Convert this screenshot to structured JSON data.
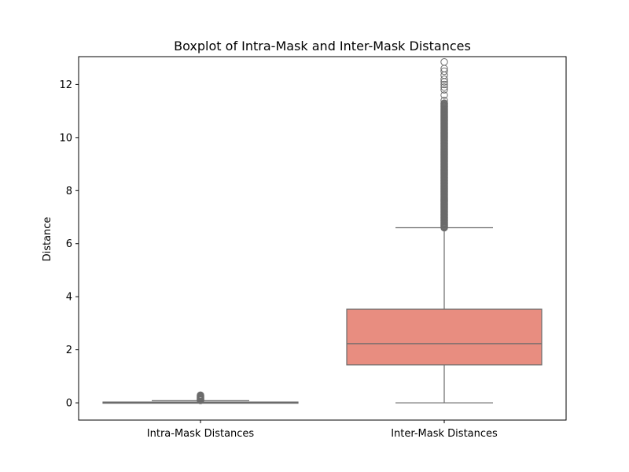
{
  "chart_data": {
    "type": "boxplot",
    "title": "Boxplot of Intra-Mask and Inter-Mask Distances",
    "xlabel": "",
    "ylabel": "Distance",
    "ylim": [
      -0.65,
      13.05
    ],
    "yticks": [
      0,
      2,
      4,
      6,
      8,
      10,
      12
    ],
    "grid": false,
    "categories": [
      "Intra-Mask Distances",
      "Inter-Mask Distances"
    ],
    "boxes": [
      {
        "category": "Intra-Mask Distances",
        "min": 0.0,
        "q1": 0.0,
        "median": 0.01,
        "q3": 0.03,
        "max": 0.08,
        "outliers": [
          0.09,
          0.11,
          0.13,
          0.15,
          0.17,
          0.19,
          0.21,
          0.23,
          0.25,
          0.27,
          0.29
        ],
        "color": "#9aa9d1"
      },
      {
        "category": "Inter-Mask Distances",
        "min": 0.0,
        "q1": 1.43,
        "median": 2.23,
        "q3": 3.53,
        "max": 6.6,
        "outliers_range": [
          6.6,
          11.3
        ],
        "outliers": [
          11.4,
          11.6,
          11.8,
          11.9,
          12.0,
          12.1,
          12.2,
          12.35,
          12.5,
          12.6,
          12.85
        ],
        "color": "#e88d80"
      }
    ],
    "outline_color": "#6b6b6b"
  }
}
